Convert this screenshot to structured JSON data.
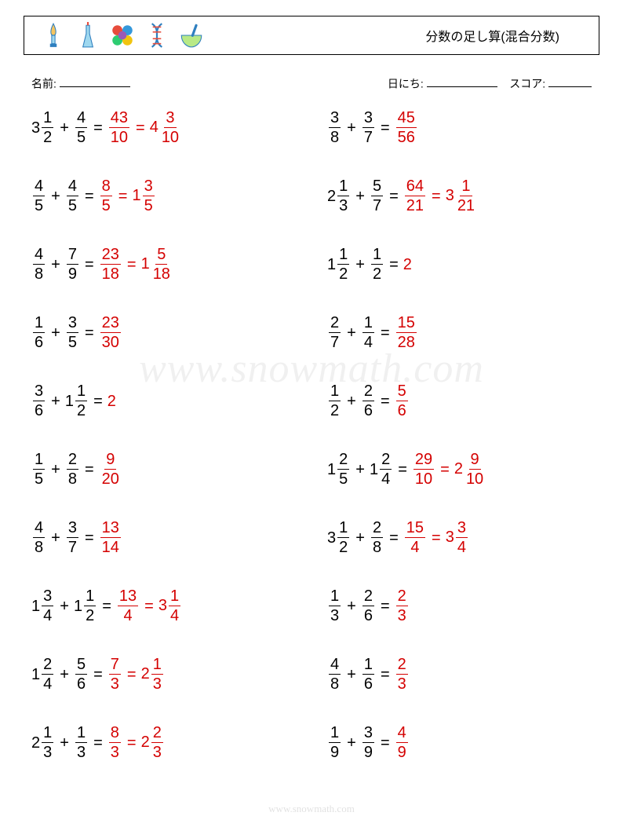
{
  "title": "分数の足し算(混合分数)",
  "labels": {
    "name": "名前:",
    "date": "日にち:",
    "score": "スコア:"
  },
  "watermark": "www.snowmath.com",
  "footer": "www.snowmath.com",
  "colors": {
    "answer": "#d40000",
    "text": "#000000"
  },
  "icons": [
    {
      "name": "lamp-icon",
      "fill": "#f6c560",
      "stroke": "#2e7fbf"
    },
    {
      "name": "flask-icon",
      "fill": "#9fd8ef",
      "stroke": "#2e7fbf"
    },
    {
      "name": "atoms-icon",
      "colors": [
        "#e74c3c",
        "#3498db",
        "#2ecc71",
        "#f1c40f",
        "#9b59b6"
      ]
    },
    {
      "name": "dna-icon",
      "stroke": "#2e7fbf"
    },
    {
      "name": "mortar-icon",
      "fill": "#b8e986",
      "stroke": "#2e7fbf"
    }
  ],
  "leftColumn": [
    {
      "a": {
        "w": 3,
        "n": 1,
        "d": 2
      },
      "b": {
        "n": 4,
        "d": 5
      },
      "ans": [
        {
          "n": 43,
          "d": 10
        },
        {
          "w": 4,
          "n": 3,
          "d": 10
        }
      ]
    },
    {
      "a": {
        "n": 4,
        "d": 5
      },
      "b": {
        "n": 4,
        "d": 5
      },
      "ans": [
        {
          "n": 8,
          "d": 5
        },
        {
          "w": 1,
          "n": 3,
          "d": 5
        }
      ]
    },
    {
      "a": {
        "n": 4,
        "d": 8
      },
      "b": {
        "n": 7,
        "d": 9
      },
      "ans": [
        {
          "n": 23,
          "d": 18
        },
        {
          "w": 1,
          "n": 5,
          "d": 18
        }
      ]
    },
    {
      "a": {
        "n": 1,
        "d": 6
      },
      "b": {
        "n": 3,
        "d": 5
      },
      "ans": [
        {
          "n": 23,
          "d": 30
        }
      ]
    },
    {
      "a": {
        "n": 3,
        "d": 6
      },
      "b": {
        "w": 1,
        "n": 1,
        "d": 2
      },
      "ans": [
        {
          "int": 2
        }
      ]
    },
    {
      "a": {
        "n": 1,
        "d": 5
      },
      "b": {
        "n": 2,
        "d": 8
      },
      "ans": [
        {
          "n": 9,
          "d": 20
        }
      ]
    },
    {
      "a": {
        "n": 4,
        "d": 8
      },
      "b": {
        "n": 3,
        "d": 7
      },
      "ans": [
        {
          "n": 13,
          "d": 14
        }
      ]
    },
    {
      "a": {
        "w": 1,
        "n": 3,
        "d": 4
      },
      "b": {
        "w": 1,
        "n": 1,
        "d": 2
      },
      "ans": [
        {
          "n": 13,
          "d": 4
        },
        {
          "w": 3,
          "n": 1,
          "d": 4
        }
      ]
    },
    {
      "a": {
        "w": 1,
        "n": 2,
        "d": 4
      },
      "b": {
        "n": 5,
        "d": 6
      },
      "ans": [
        {
          "n": 7,
          "d": 3
        },
        {
          "w": 2,
          "n": 1,
          "d": 3
        }
      ]
    },
    {
      "a": {
        "w": 2,
        "n": 1,
        "d": 3
      },
      "b": {
        "n": 1,
        "d": 3
      },
      "ans": [
        {
          "n": 8,
          "d": 3
        },
        {
          "w": 2,
          "n": 2,
          "d": 3
        }
      ]
    }
  ],
  "rightColumn": [
    {
      "a": {
        "n": 3,
        "d": 8
      },
      "b": {
        "n": 3,
        "d": 7
      },
      "ans": [
        {
          "n": 45,
          "d": 56
        }
      ]
    },
    {
      "a": {
        "w": 2,
        "n": 1,
        "d": 3
      },
      "b": {
        "n": 5,
        "d": 7
      },
      "ans": [
        {
          "n": 64,
          "d": 21
        },
        {
          "w": 3,
          "n": 1,
          "d": 21
        }
      ]
    },
    {
      "a": {
        "w": 1,
        "n": 1,
        "d": 2
      },
      "b": {
        "n": 1,
        "d": 2
      },
      "ans": [
        {
          "int": 2
        }
      ]
    },
    {
      "a": {
        "n": 2,
        "d": 7
      },
      "b": {
        "n": 1,
        "d": 4
      },
      "ans": [
        {
          "n": 15,
          "d": 28
        }
      ]
    },
    {
      "a": {
        "n": 1,
        "d": 2
      },
      "b": {
        "n": 2,
        "d": 6
      },
      "ans": [
        {
          "n": 5,
          "d": 6
        }
      ]
    },
    {
      "a": {
        "w": 1,
        "n": 2,
        "d": 5
      },
      "b": {
        "w": 1,
        "n": 2,
        "d": 4
      },
      "ans": [
        {
          "n": 29,
          "d": 10
        },
        {
          "w": 2,
          "n": 9,
          "d": 10
        }
      ]
    },
    {
      "a": {
        "w": 3,
        "n": 1,
        "d": 2
      },
      "b": {
        "n": 2,
        "d": 8
      },
      "ans": [
        {
          "n": 15,
          "d": 4
        },
        {
          "w": 3,
          "n": 3,
          "d": 4
        }
      ]
    },
    {
      "a": {
        "n": 1,
        "d": 3
      },
      "b": {
        "n": 2,
        "d": 6
      },
      "ans": [
        {
          "n": 2,
          "d": 3
        }
      ]
    },
    {
      "a": {
        "n": 4,
        "d": 8
      },
      "b": {
        "n": 1,
        "d": 6
      },
      "ans": [
        {
          "n": 2,
          "d": 3
        }
      ]
    },
    {
      "a": {
        "n": 1,
        "d": 9
      },
      "b": {
        "n": 3,
        "d": 9
      },
      "ans": [
        {
          "n": 4,
          "d": 9
        }
      ]
    }
  ]
}
